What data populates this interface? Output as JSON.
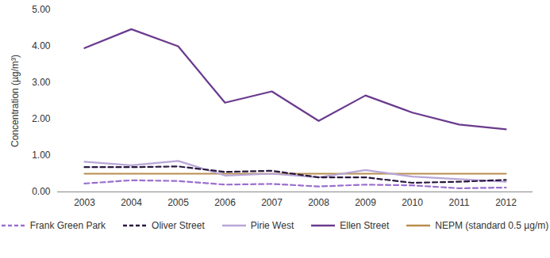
{
  "chart_data": {
    "type": "line",
    "y_label": "Concentration (µg/m³)",
    "categories": [
      "2003",
      "2004",
      "2005",
      "2006",
      "2007",
      "2008",
      "2009",
      "2010",
      "2011",
      "2012"
    ],
    "series": [
      {
        "name": "Frank Green Park",
        "color": "#9b6fcf",
        "line_style": "dashed",
        "values": [
          0.23,
          0.32,
          0.3,
          0.2,
          0.22,
          0.15,
          0.2,
          0.18,
          0.1,
          0.12
        ]
      },
      {
        "name": "Oliver Street",
        "color": "#2a1840",
        "line_style": "dashed",
        "values": [
          0.68,
          0.68,
          0.7,
          0.55,
          0.58,
          0.4,
          0.4,
          0.25,
          0.28,
          0.33
        ]
      },
      {
        "name": "Pirie West",
        "color": "#b8a6d6",
        "line_style": "solid",
        "values": [
          0.83,
          0.73,
          0.85,
          0.45,
          0.5,
          0.4,
          0.6,
          0.42,
          0.35,
          0.28
        ]
      },
      {
        "name": "Ellen Street",
        "color": "#6a3a8e",
        "line_style": "solid",
        "values": [
          3.95,
          4.47,
          4.0,
          2.45,
          2.76,
          1.95,
          2.65,
          2.18,
          1.85,
          1.72
        ]
      },
      {
        "name": "NEPM (standard 0.5 µg/m)",
        "color": "#b88d4e",
        "line_style": "solid",
        "values": [
          0.5,
          0.5,
          0.5,
          0.5,
          0.5,
          0.5,
          0.5,
          0.5,
          0.5,
          0.5
        ]
      }
    ],
    "ylim": [
      0,
      5
    ],
    "yticks": [
      {
        "value": 0,
        "label": "0.00"
      },
      {
        "value": 1,
        "label": "1.00"
      },
      {
        "value": 2,
        "label": "2.00"
      },
      {
        "value": 3,
        "label": "3.00"
      },
      {
        "value": 4,
        "label": "4.00"
      },
      {
        "value": 5,
        "label": "5.00"
      }
    ],
    "grid": false,
    "legend": "bottom"
  }
}
